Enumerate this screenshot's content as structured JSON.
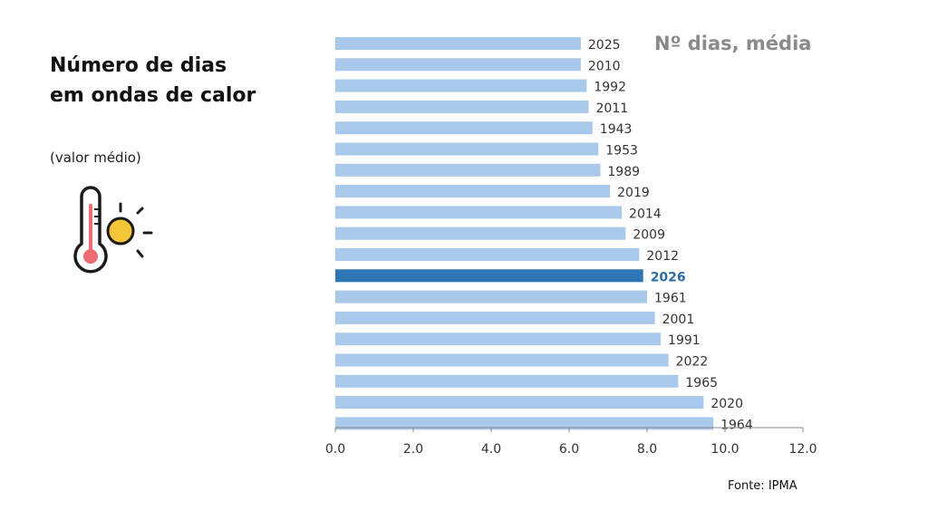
{
  "header": {
    "title": "Número de dias em ondas de calor",
    "subtitle": "(valor médio)"
  },
  "source": "Fonte: IPMA",
  "icons": {
    "thermometer": "thermometer-sun-icon"
  },
  "colors": {
    "bar": "#a9c9ea",
    "bar_highlight": "#2e75b6",
    "highlight_label": "#2e6da4",
    "title": "#8a8a8a",
    "thermometer_bulb": "#ef6b73",
    "sun": "#f5c538"
  },
  "chart_data": {
    "type": "bar",
    "orientation": "horizontal",
    "title": "Nº dias, média",
    "xlabel": "",
    "ylabel": "",
    "categories": [
      "2025",
      "2010",
      "1992",
      "2011",
      "1943",
      "1953",
      "1989",
      "2019",
      "2014",
      "2009",
      "2012",
      "2026",
      "1961",
      "2001",
      "1991",
      "2022",
      "1965",
      "2020",
      "1964"
    ],
    "values": [
      6.3,
      6.3,
      6.45,
      6.5,
      6.6,
      6.75,
      6.8,
      7.05,
      7.35,
      7.45,
      7.8,
      7.9,
      8.0,
      8.2,
      8.35,
      8.55,
      8.8,
      9.45,
      9.7
    ],
    "highlight": "2026",
    "xlim": [
      0,
      12
    ],
    "ticks": [
      "0.0",
      "2.0",
      "4.0",
      "6.0",
      "8.0",
      "10.0",
      "12.0"
    ],
    "grid": false
  }
}
